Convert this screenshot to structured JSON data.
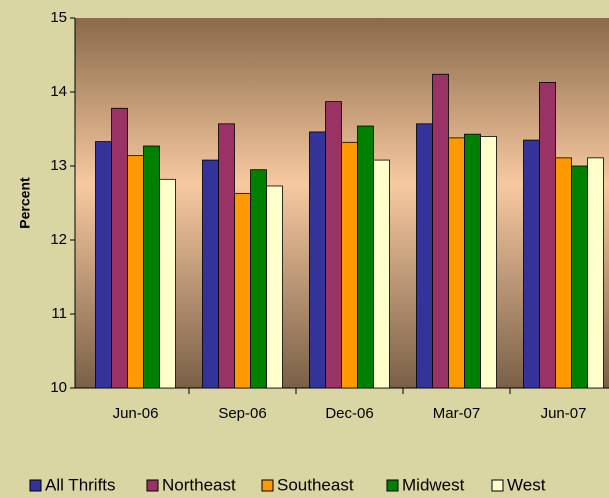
{
  "chart_data": {
    "type": "bar",
    "ylabel": "Percent",
    "categories": [
      "Jun-06",
      "Sep-06",
      "Dec-06",
      "Mar-07",
      "Jun-07"
    ],
    "series": [
      {
        "name": "All Thrifts",
        "color": "#333399",
        "values": [
          13.33,
          13.08,
          13.46,
          13.57,
          13.35
        ]
      },
      {
        "name": "Northeast",
        "color": "#993366",
        "values": [
          13.78,
          13.57,
          13.87,
          14.24,
          14.13
        ]
      },
      {
        "name": "Southeast",
        "color": "#ff9900",
        "values": [
          13.14,
          12.63,
          13.32,
          13.38,
          13.11
        ]
      },
      {
        "name": "Midwest",
        "color": "#008000",
        "values": [
          13.27,
          12.95,
          13.54,
          13.43,
          13.0
        ]
      },
      {
        "name": "West",
        "color": "#ffffcc",
        "values": [
          12.82,
          12.73,
          13.08,
          13.4,
          13.11
        ]
      }
    ],
    "ylim": [
      10,
      15
    ],
    "yticks": [
      10,
      11,
      12,
      13,
      14,
      15
    ],
    "legend": "bottom"
  }
}
